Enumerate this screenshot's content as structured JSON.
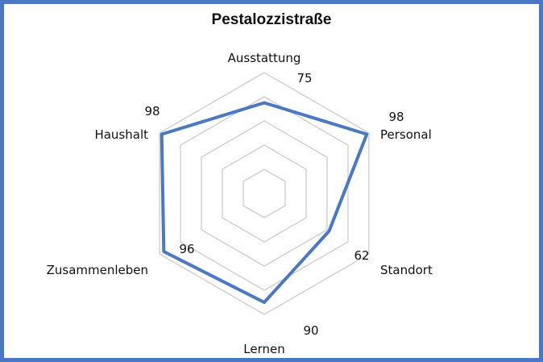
{
  "chart_data": {
    "type": "radar",
    "title": "Pestalozzistraße",
    "categories": [
      "Ausstattung",
      "Personal",
      "Standort",
      "Lernen",
      "Zusammenleben",
      "Haushalt"
    ],
    "series": [
      {
        "values": [
          75,
          98,
          62,
          90,
          96,
          98
        ]
      }
    ],
    "rlim": [
      0,
      100
    ],
    "grid_rings": 5,
    "grid": true,
    "colors": {
      "series": "#4a78c2",
      "grid": "#c8c8c8",
      "frame": "#4a78c2"
    }
  }
}
